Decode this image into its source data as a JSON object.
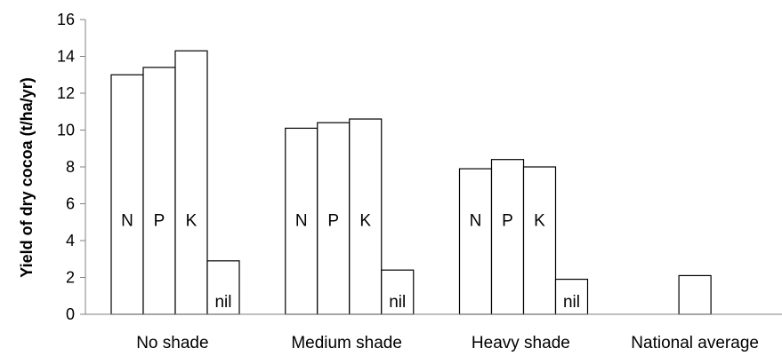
{
  "chart_data": {
    "type": "bar",
    "ylabel": "Yield of dry cocoa (t/ha/yr)",
    "ylim": [
      0,
      16
    ],
    "yticks": [
      "0",
      "2",
      "4",
      "6",
      "8",
      "10",
      "12",
      "14",
      "16"
    ],
    "categories": [
      "No shade",
      "Medium shade",
      "Heavy shade",
      "National average"
    ],
    "series": [
      {
        "name": "N",
        "values": [
          13.0,
          10.1,
          7.9,
          null
        ]
      },
      {
        "name": "P",
        "values": [
          13.4,
          10.4,
          8.4,
          null
        ]
      },
      {
        "name": "K",
        "values": [
          14.3,
          10.6,
          8.0,
          null
        ]
      },
      {
        "name": "nil",
        "values": [
          2.9,
          2.4,
          1.9,
          2.1
        ]
      }
    ],
    "grid": false,
    "colors": {
      "bar_fill": "#ffffff",
      "bar_stroke": "#000000",
      "axis": "#808080"
    }
  }
}
